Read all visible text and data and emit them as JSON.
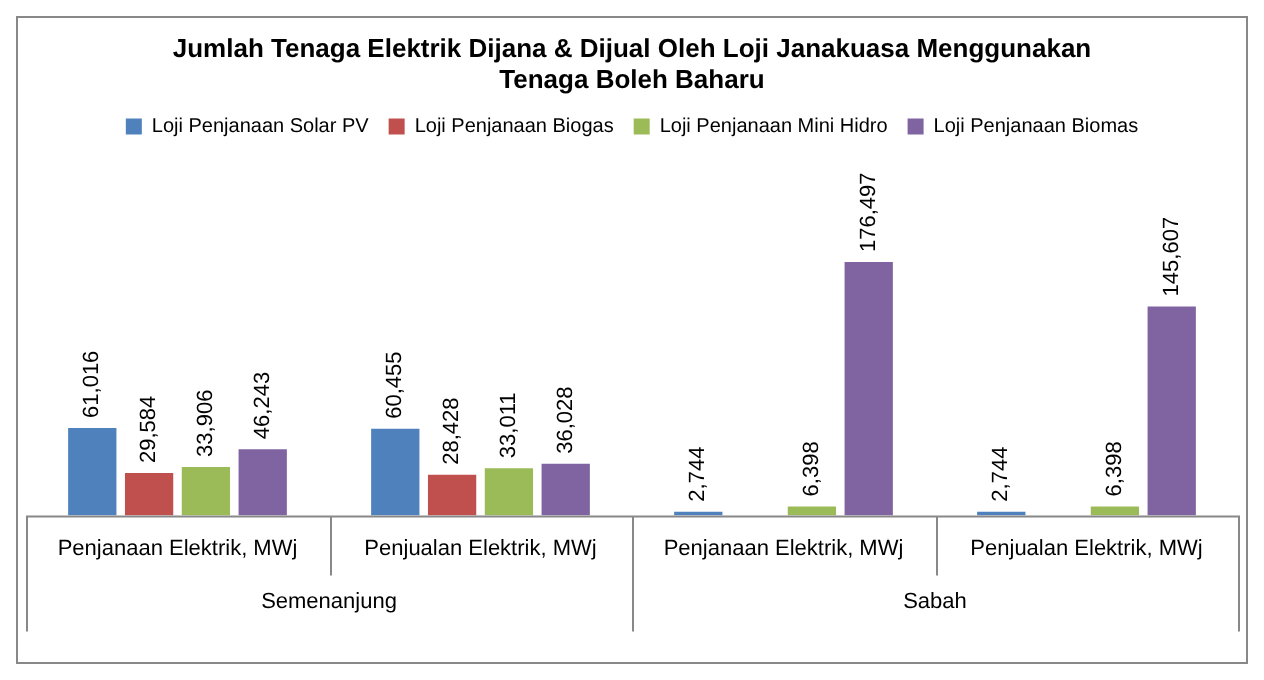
{
  "chart_data": {
    "type": "bar",
    "title": "Jumlah Tenaga Elektrik Dijana & Dijual Oleh Loji Janakuasa Menggunakan Tenaga Boleh Baharu",
    "categories": [
      "Penjanaan Elektrik, MWj",
      "Penjualan Elektrik, MWj",
      "Penjanaan Elektrik, MWj",
      "Penjualan Elektrik, MWj"
    ],
    "series": [
      {
        "name": "Loji Penjanaan Solar PV",
        "color": "#4f81bd",
        "values": [
          61016,
          60455,
          2744,
          2744
        ],
        "value_labels": [
          "61,016",
          "60,455",
          "2,744",
          "2,744"
        ]
      },
      {
        "name": "Loji Penjanaan Biogas",
        "color": "#c0504d",
        "values": [
          29584,
          28428,
          null,
          null
        ],
        "value_labels": [
          "29,584",
          "28,428",
          null,
          null
        ]
      },
      {
        "name": "Loji Penjanaan Mini Hidro",
        "color": "#9bbb59",
        "values": [
          33906,
          33011,
          6398,
          6398
        ],
        "value_labels": [
          "33,906",
          "33,011",
          "6,398",
          "6,398"
        ]
      },
      {
        "name": "Loji Penjanaan Biomas",
        "color": "#8064a2",
        "values": [
          46243,
          36028,
          176497,
          145607
        ],
        "value_labels": [
          "46,243",
          "36,028",
          "176,497",
          "145,607"
        ]
      }
    ],
    "annotations": [
      "Semenanjung",
      "Sabah"
    ],
    "legend": "top"
  }
}
